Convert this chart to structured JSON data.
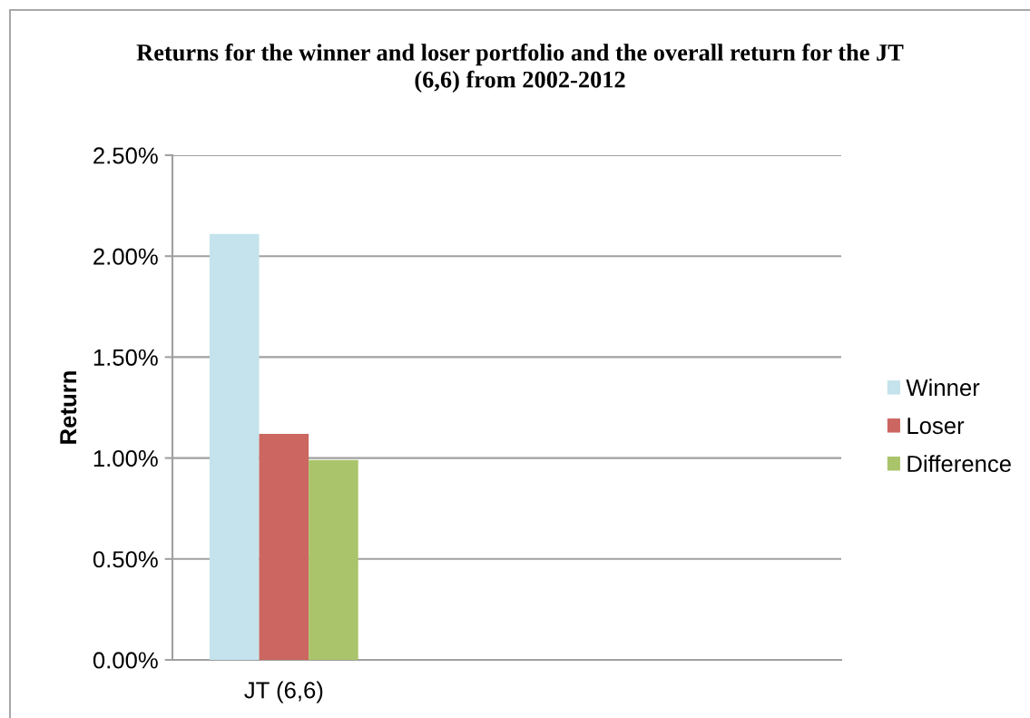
{
  "chart_data": {
    "type": "bar",
    "title": "Returns for the winner and loser portfolio and the overall return for the JT\n(6,6) from 2002-2012",
    "ylabel": "Return",
    "categories": [
      "JT (6,6)",
      null,
      null
    ],
    "series": [
      {
        "name": "Winner",
        "color": "#c4e3ec",
        "values": [
          2.11,
          null,
          null
        ]
      },
      {
        "name": "Loser",
        "color": "#cc6660",
        "values": [
          1.12,
          null,
          null
        ]
      },
      {
        "name": "Difference",
        "color": "#aac46b",
        "values": [
          0.99,
          null,
          null
        ]
      }
    ],
    "ylim": [
      0,
      2.5
    ],
    "yticks": [
      {
        "value": 0,
        "label": "0.00%"
      },
      {
        "value": 0.5,
        "label": "0.50%"
      },
      {
        "value": 1.0,
        "label": "1.00%"
      },
      {
        "value": 1.5,
        "label": "1.50%"
      },
      {
        "value": 2.0,
        "label": "2.00%"
      },
      {
        "value": 2.5,
        "label": "2.50%"
      }
    ],
    "grid": "y",
    "legend": "right"
  }
}
